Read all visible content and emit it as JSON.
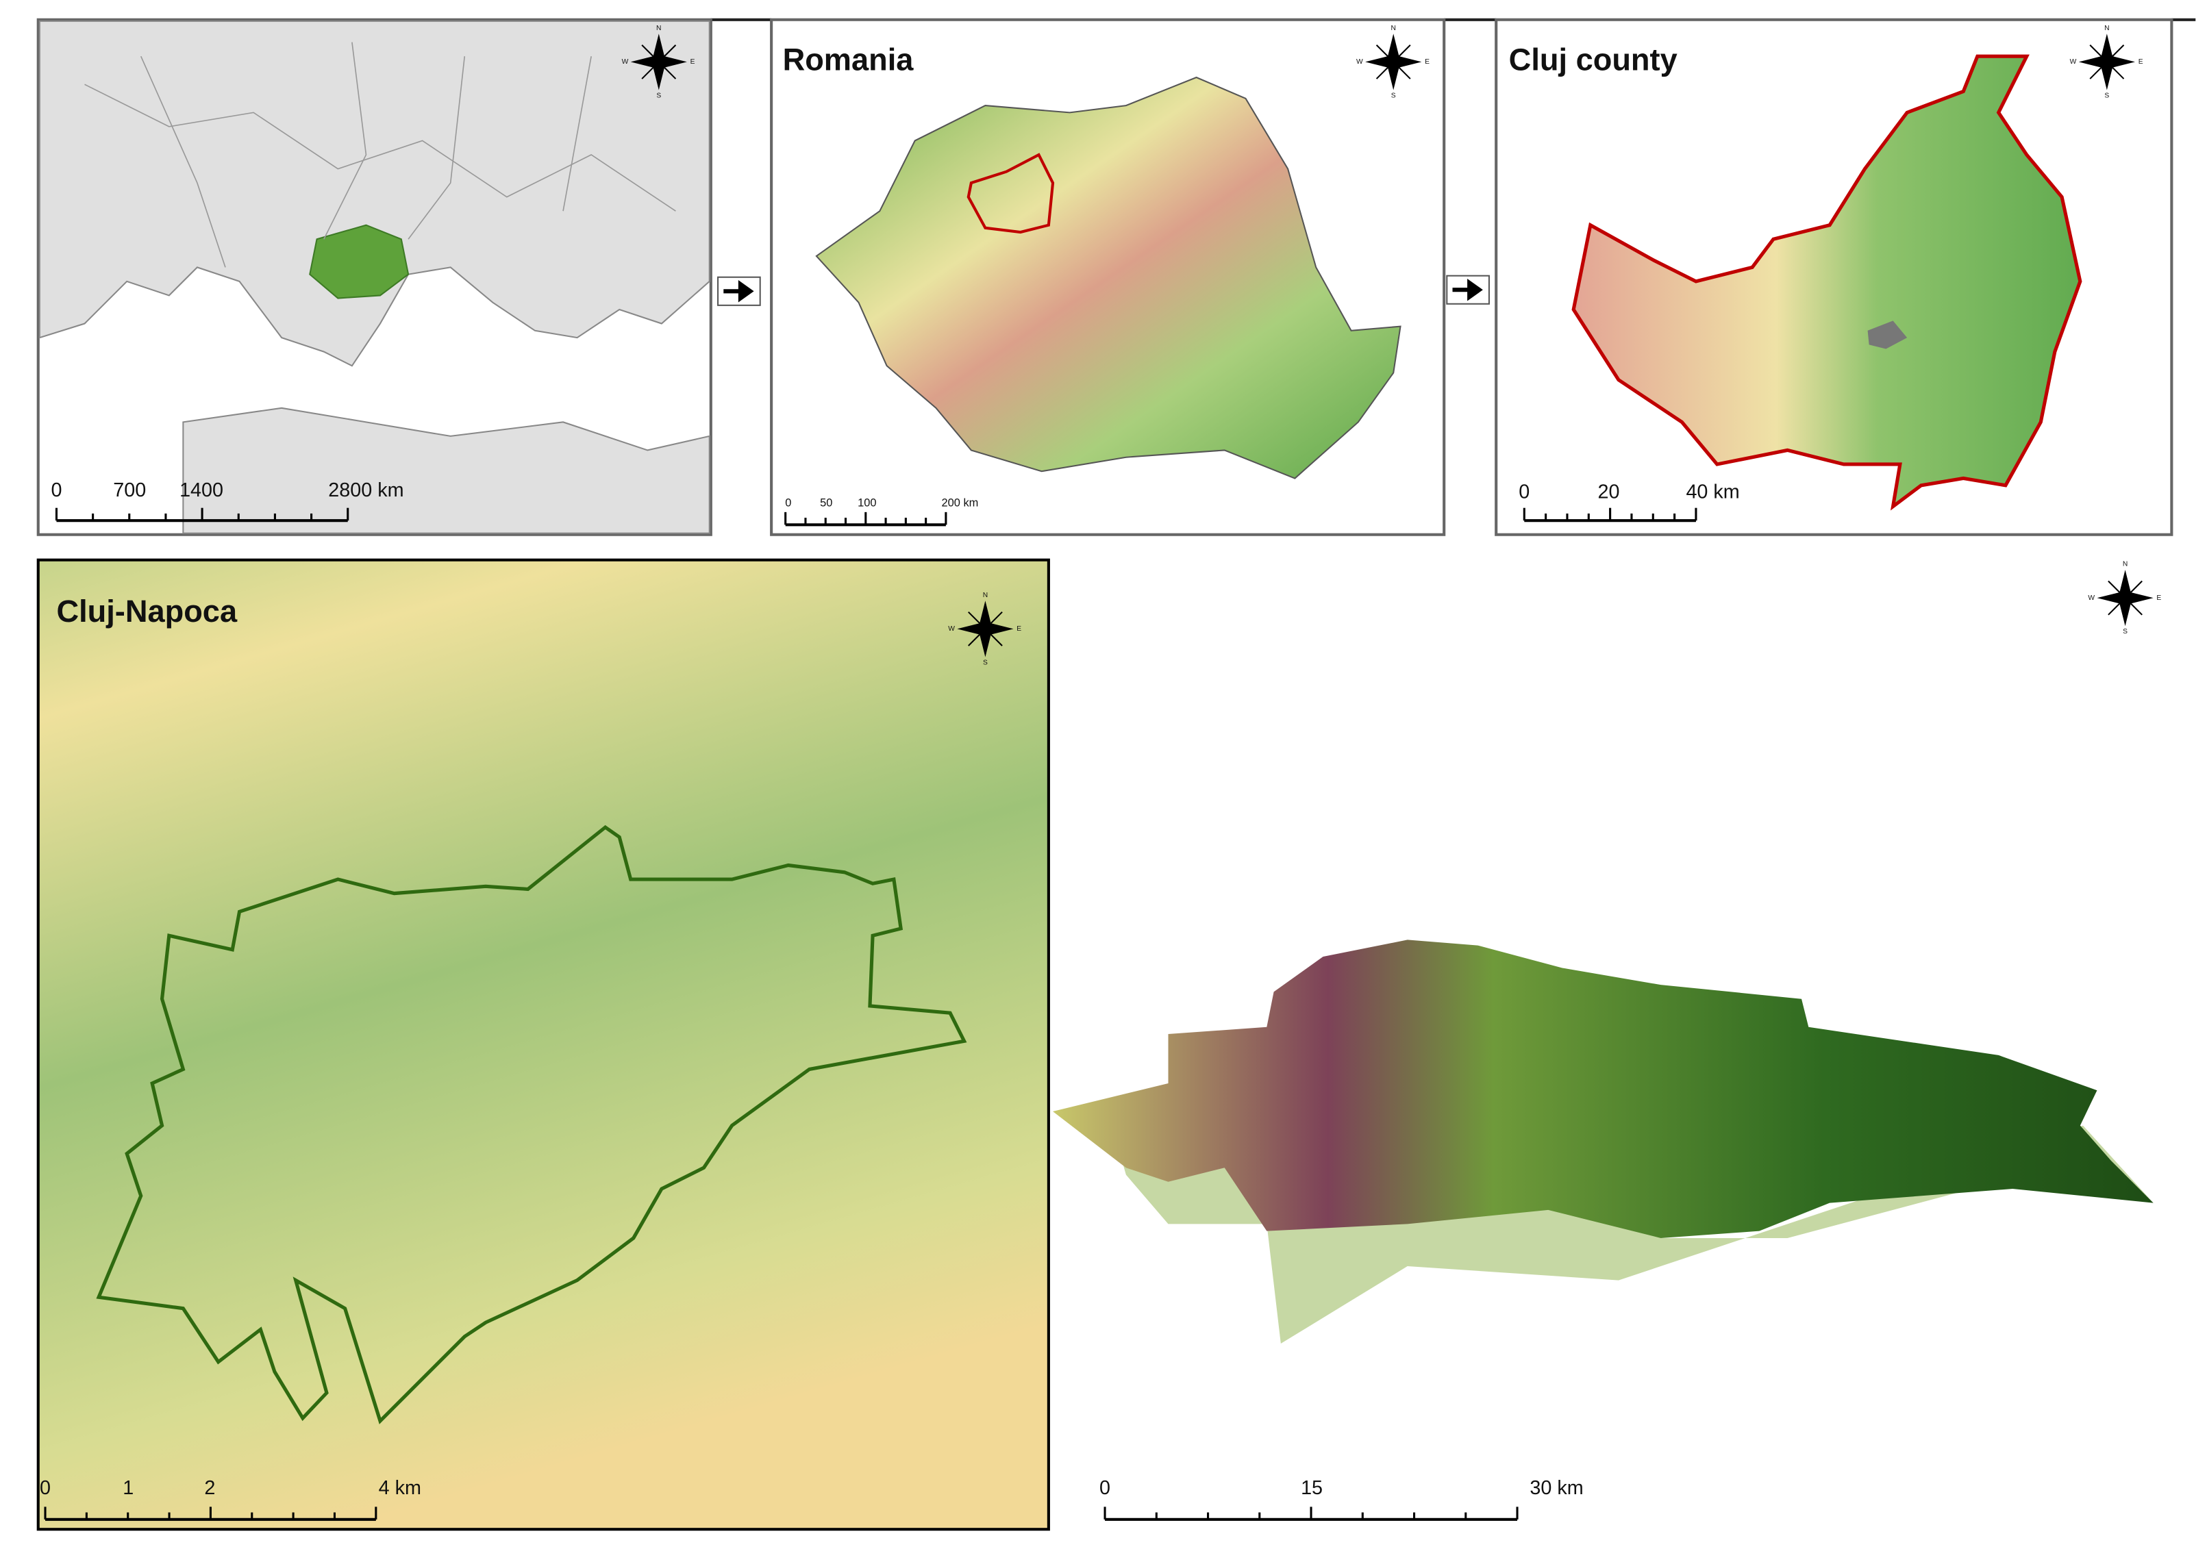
{
  "europe": {
    "scale": [
      "0",
      "700",
      "1400",
      "2800 km"
    ]
  },
  "romania": {
    "title": "Romania",
    "scale": [
      "0",
      "50",
      "100",
      "200 km"
    ]
  },
  "cluj_county": {
    "title": "Cluj county",
    "scale": [
      "0",
      "20",
      "40 km"
    ]
  },
  "cluj_napoca": {
    "title": "Cluj-Napoca",
    "scale": [
      "0",
      "1",
      "2",
      "4 km"
    ]
  },
  "terrain_3d": {
    "scale": [
      "0",
      "15",
      "30 km"
    ]
  },
  "compass": {
    "n": "N",
    "s": "S",
    "e": "E",
    "w": "W"
  }
}
